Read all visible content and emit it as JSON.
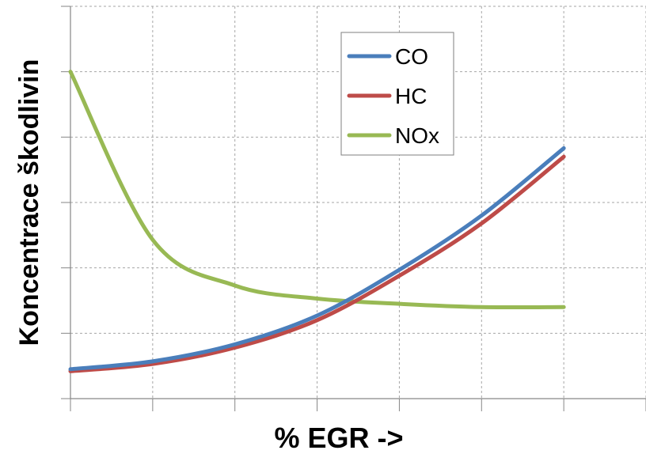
{
  "chart_data": {
    "type": "line",
    "title": "",
    "xlabel": "% EGR ->",
    "ylabel": "Koncentrace škodlivin",
    "x": [
      0,
      1,
      2,
      3,
      4,
      5,
      6
    ],
    "xlim": [
      0,
      7
    ],
    "ylim": [
      0,
      6
    ],
    "grid": true,
    "legend_position": "top-center",
    "series": [
      {
        "name": "CO",
        "color": "#4a7ebb",
        "values": [
          0.45,
          0.57,
          0.83,
          1.27,
          1.97,
          2.8,
          3.83
        ]
      },
      {
        "name": "HC",
        "color": "#be4b48",
        "values": [
          0.42,
          0.53,
          0.78,
          1.2,
          1.88,
          2.68,
          3.7
        ]
      },
      {
        "name": "NOx",
        "color": "#98b954",
        "values": [
          5.0,
          2.43,
          1.73,
          1.53,
          1.45,
          1.4,
          1.4
        ]
      }
    ]
  }
}
